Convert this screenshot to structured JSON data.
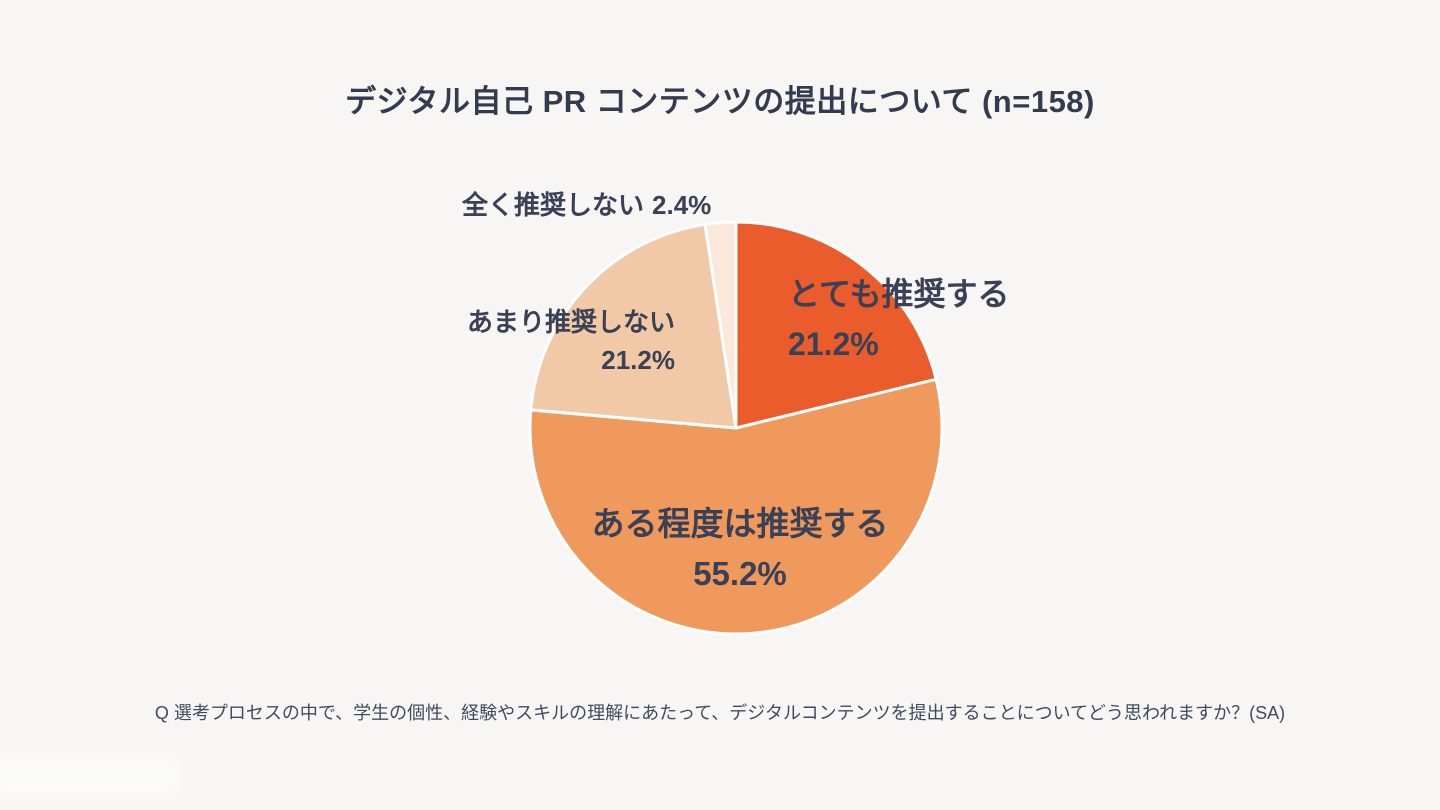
{
  "page": {
    "background": "#F7F6F4",
    "text_color": "#3A4156"
  },
  "header": {
    "title": "デジタル自己 PR コンテンツの提出について (n=158)"
  },
  "footer": {
    "question": "Q 選考プロセスの中で、学生の個性、経験やスキルの理解にあたって、デジタルコンテンツを提出することについてどう思われますか？(SA)"
  },
  "chart_data": {
    "type": "pie",
    "title": "デジタル自己 PR コンテンツの提出について (n=158)",
    "sample_size": 158,
    "start_angle_deg": -90,
    "direction": "clockwise",
    "total": 100,
    "stroke_color": "#FFFFFF",
    "slices": [
      {
        "label": "とても推奨する",
        "value": 21.2,
        "pct_label": "21.2%",
        "color": "#EA5C2C"
      },
      {
        "label": "ある程度は推奨する",
        "value": 55.2,
        "pct_label": "55.2%",
        "color": "#F0995C"
      },
      {
        "label": "あまり推奨しない",
        "value": 21.2,
        "pct_label": "21.2%",
        "color": "#F1C9A7"
      },
      {
        "label": "全く推奨しない",
        "value": 2.4,
        "pct_label": "2.4%",
        "color": "#FBE8DA"
      }
    ],
    "note": "Q 選考プロセスの中で、学生の個性、経験やスキルの理解にあたって、デジタルコンテンツを提出することについてどう思われますか？(SA)"
  }
}
